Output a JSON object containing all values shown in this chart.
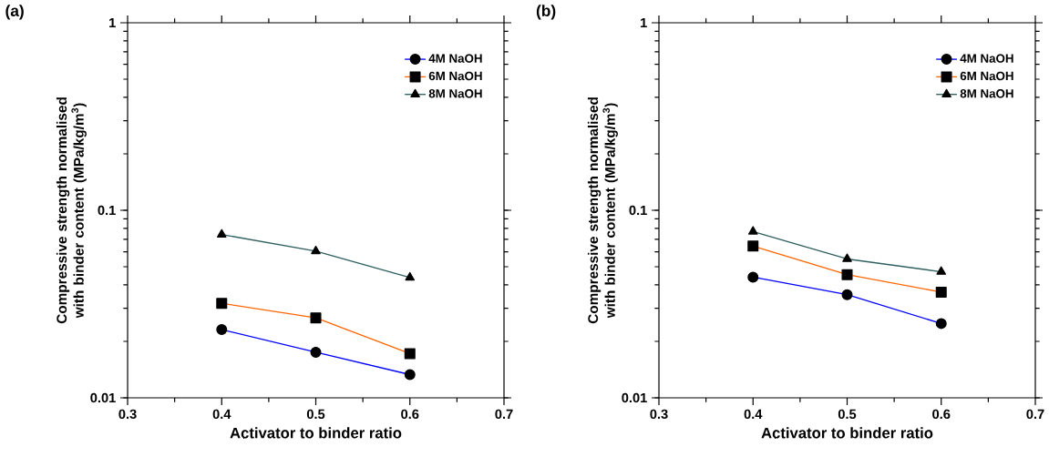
{
  "chart_data": [
    {
      "type": "line",
      "title": "(a)",
      "xlabel": "Activator to binder ratio",
      "ylabel": "Compressive strength normalised with binder content (MPa/kg/m$^{3}$)",
      "log": "y",
      "legend": "top right",
      "xlim": [
        0.3,
        0.7
      ],
      "ylim": [
        0.01,
        1
      ],
      "xticks": [
        0.3,
        {
          "value": 0.35,
          "label": null
        },
        0.4,
        {
          "value": 0.45,
          "label": null
        },
        0.5,
        {
          "value": 0.55,
          "label": null
        },
        0.6,
        {
          "value": 0.65,
          "label": null
        },
        0.7
      ],
      "yticks": [
        0.01,
        0.1,
        1
      ],
      "x": [
        0.4,
        0.5,
        0.6
      ],
      "series": [
        {
          "name": "4M NaOH",
          "color": "#0000ff",
          "marker": "circle",
          "values": [
            0.0231,
            0.0175,
            0.0133
          ]
        },
        {
          "name": "6M NaOH",
          "color": "#ff6600",
          "marker": "square",
          "values": [
            0.0319,
            0.0267,
            0.0172
          ]
        },
        {
          "name": "8M NaOH",
          "color": "#2f5f5f",
          "marker": "triangle",
          "values": [
            0.0743,
            0.0605,
            0.0438
          ]
        }
      ]
    },
    {
      "type": "line",
      "title": "(b)",
      "xlabel": "Activator to binder ratio",
      "ylabel": "Compressive strength normalised with binder content (MPa/kg/m$^{3}$)",
      "log": "y",
      "legend": "top right",
      "xlim": [
        0.3,
        0.7
      ],
      "ylim": [
        0.01,
        1
      ],
      "xticks": [
        0.3,
        {
          "value": 0.35,
          "label": null
        },
        0.4,
        {
          "value": 0.45,
          "label": null
        },
        0.5,
        {
          "value": 0.55,
          "label": null
        },
        0.6,
        {
          "value": 0.65,
          "label": null
        },
        0.7
      ],
      "yticks": [
        0.01,
        0.1,
        1
      ],
      "x": [
        0.4,
        0.5,
        0.6
      ],
      "series": [
        {
          "name": "4M NaOH",
          "color": "#0000ff",
          "marker": "circle",
          "values": [
            0.044,
            0.0355,
            0.0249
          ]
        },
        {
          "name": "6M NaOH",
          "color": "#ff6600",
          "marker": "square",
          "values": [
            0.0644,
            0.0454,
            0.0366
          ]
        },
        {
          "name": "8M NaOH",
          "color": "#2f5f5f",
          "marker": "triangle",
          "values": [
            0.077,
            0.055,
            0.047
          ]
        }
      ]
    }
  ]
}
